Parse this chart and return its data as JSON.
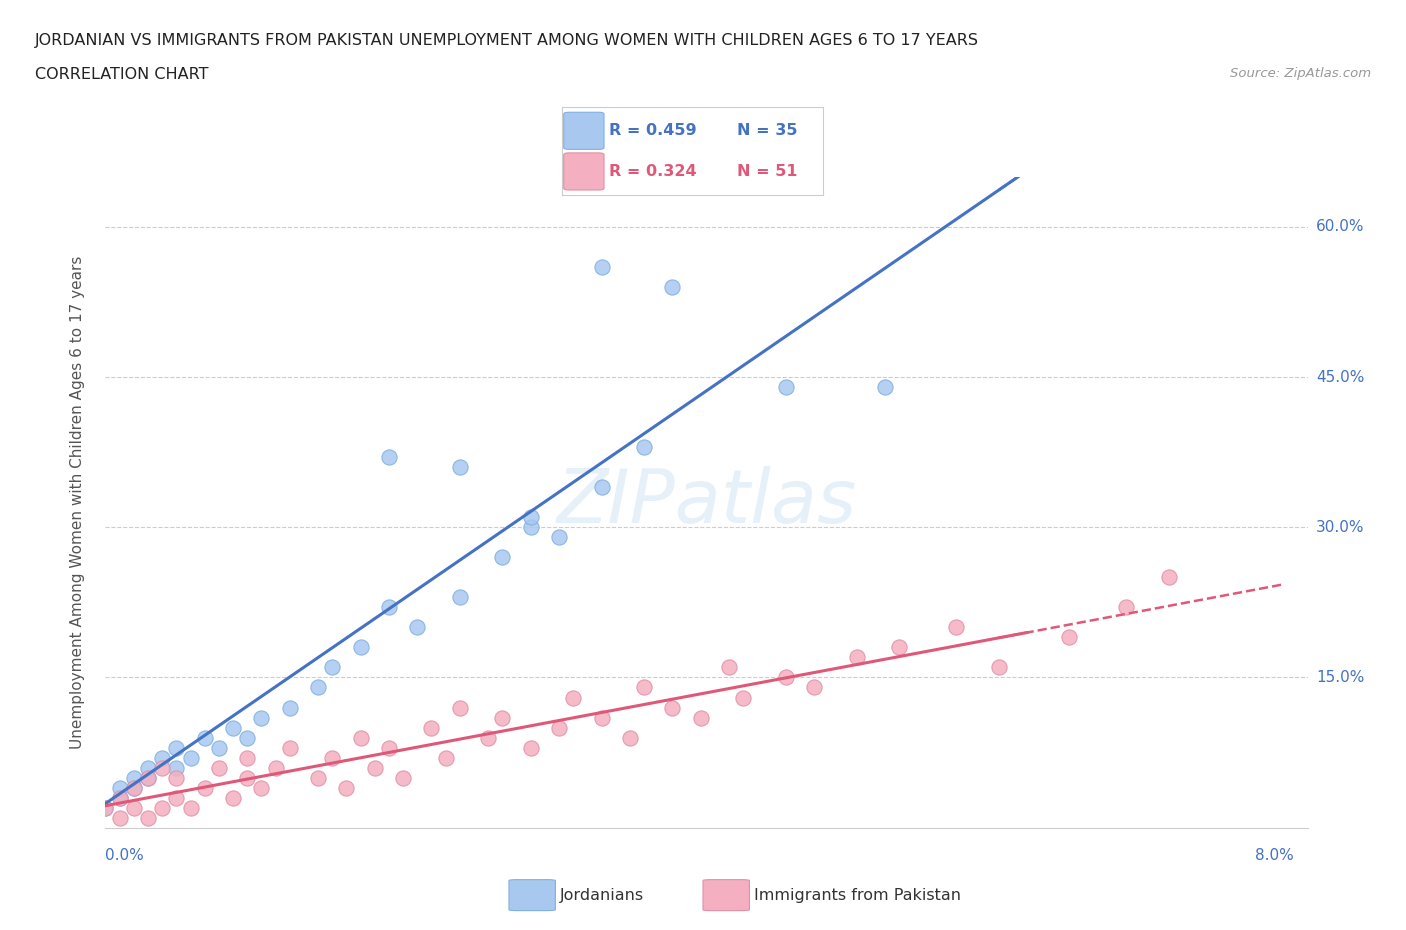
{
  "title_line1": "JORDANIAN VS IMMIGRANTS FROM PAKISTAN UNEMPLOYMENT AMONG WOMEN WITH CHILDREN AGES 6 TO 17 YEARS",
  "title_line2": "CORRELATION CHART",
  "source": "Source: ZipAtlas.com",
  "ylabel": "Unemployment Among Women with Children Ages 6 to 17 years",
  "ytick_vals": [
    0.15,
    0.3,
    0.45,
    0.6
  ],
  "ytick_labels": [
    "15.0%",
    "30.0%",
    "45.0%",
    "60.0%"
  ],
  "R_jordanian": 0.459,
  "N_jordanian": 35,
  "R_pakistan": 0.324,
  "N_pakistan": 51,
  "color_jordanian": "#a8c8f0",
  "color_pakistan": "#f4b0c0",
  "color_line_jordanian": "#4472c4",
  "color_line_pakistan": "#e05878",
  "xmin": 0.0,
  "xmax": 0.08,
  "ymin": 0.0,
  "ymax": 0.65,
  "jordanian_x": [
    0.0,
    0.001,
    0.001,
    0.002,
    0.002,
    0.003,
    0.003,
    0.004,
    0.005,
    0.005,
    0.006,
    0.007,
    0.008,
    0.009,
    0.01,
    0.011,
    0.013,
    0.015,
    0.016,
    0.018,
    0.02,
    0.022,
    0.025,
    0.028,
    0.03,
    0.032,
    0.035,
    0.02,
    0.025,
    0.03,
    0.038,
    0.048,
    0.055,
    0.04,
    0.035
  ],
  "jordanian_y": [
    0.02,
    0.03,
    0.04,
    0.04,
    0.05,
    0.05,
    0.06,
    0.07,
    0.06,
    0.08,
    0.07,
    0.09,
    0.08,
    0.1,
    0.09,
    0.11,
    0.12,
    0.14,
    0.16,
    0.18,
    0.22,
    0.2,
    0.23,
    0.27,
    0.3,
    0.29,
    0.34,
    0.37,
    0.36,
    0.31,
    0.38,
    0.44,
    0.44,
    0.54,
    0.56
  ],
  "pakistan_x": [
    0.0,
    0.001,
    0.001,
    0.002,
    0.002,
    0.003,
    0.003,
    0.004,
    0.004,
    0.005,
    0.005,
    0.006,
    0.007,
    0.008,
    0.009,
    0.01,
    0.01,
    0.011,
    0.012,
    0.013,
    0.015,
    0.016,
    0.017,
    0.018,
    0.019,
    0.02,
    0.021,
    0.023,
    0.024,
    0.025,
    0.027,
    0.028,
    0.03,
    0.032,
    0.033,
    0.035,
    0.037,
    0.038,
    0.04,
    0.042,
    0.044,
    0.045,
    0.048,
    0.05,
    0.053,
    0.056,
    0.06,
    0.063,
    0.068,
    0.072,
    0.075
  ],
  "pakistan_y": [
    0.02,
    0.01,
    0.03,
    0.02,
    0.04,
    0.01,
    0.05,
    0.02,
    0.06,
    0.03,
    0.05,
    0.02,
    0.04,
    0.06,
    0.03,
    0.05,
    0.07,
    0.04,
    0.06,
    0.08,
    0.05,
    0.07,
    0.04,
    0.09,
    0.06,
    0.08,
    0.05,
    0.1,
    0.07,
    0.12,
    0.09,
    0.11,
    0.08,
    0.1,
    0.13,
    0.11,
    0.09,
    0.14,
    0.12,
    0.11,
    0.16,
    0.13,
    0.15,
    0.14,
    0.17,
    0.18,
    0.2,
    0.16,
    0.19,
    0.22,
    0.25
  ]
}
